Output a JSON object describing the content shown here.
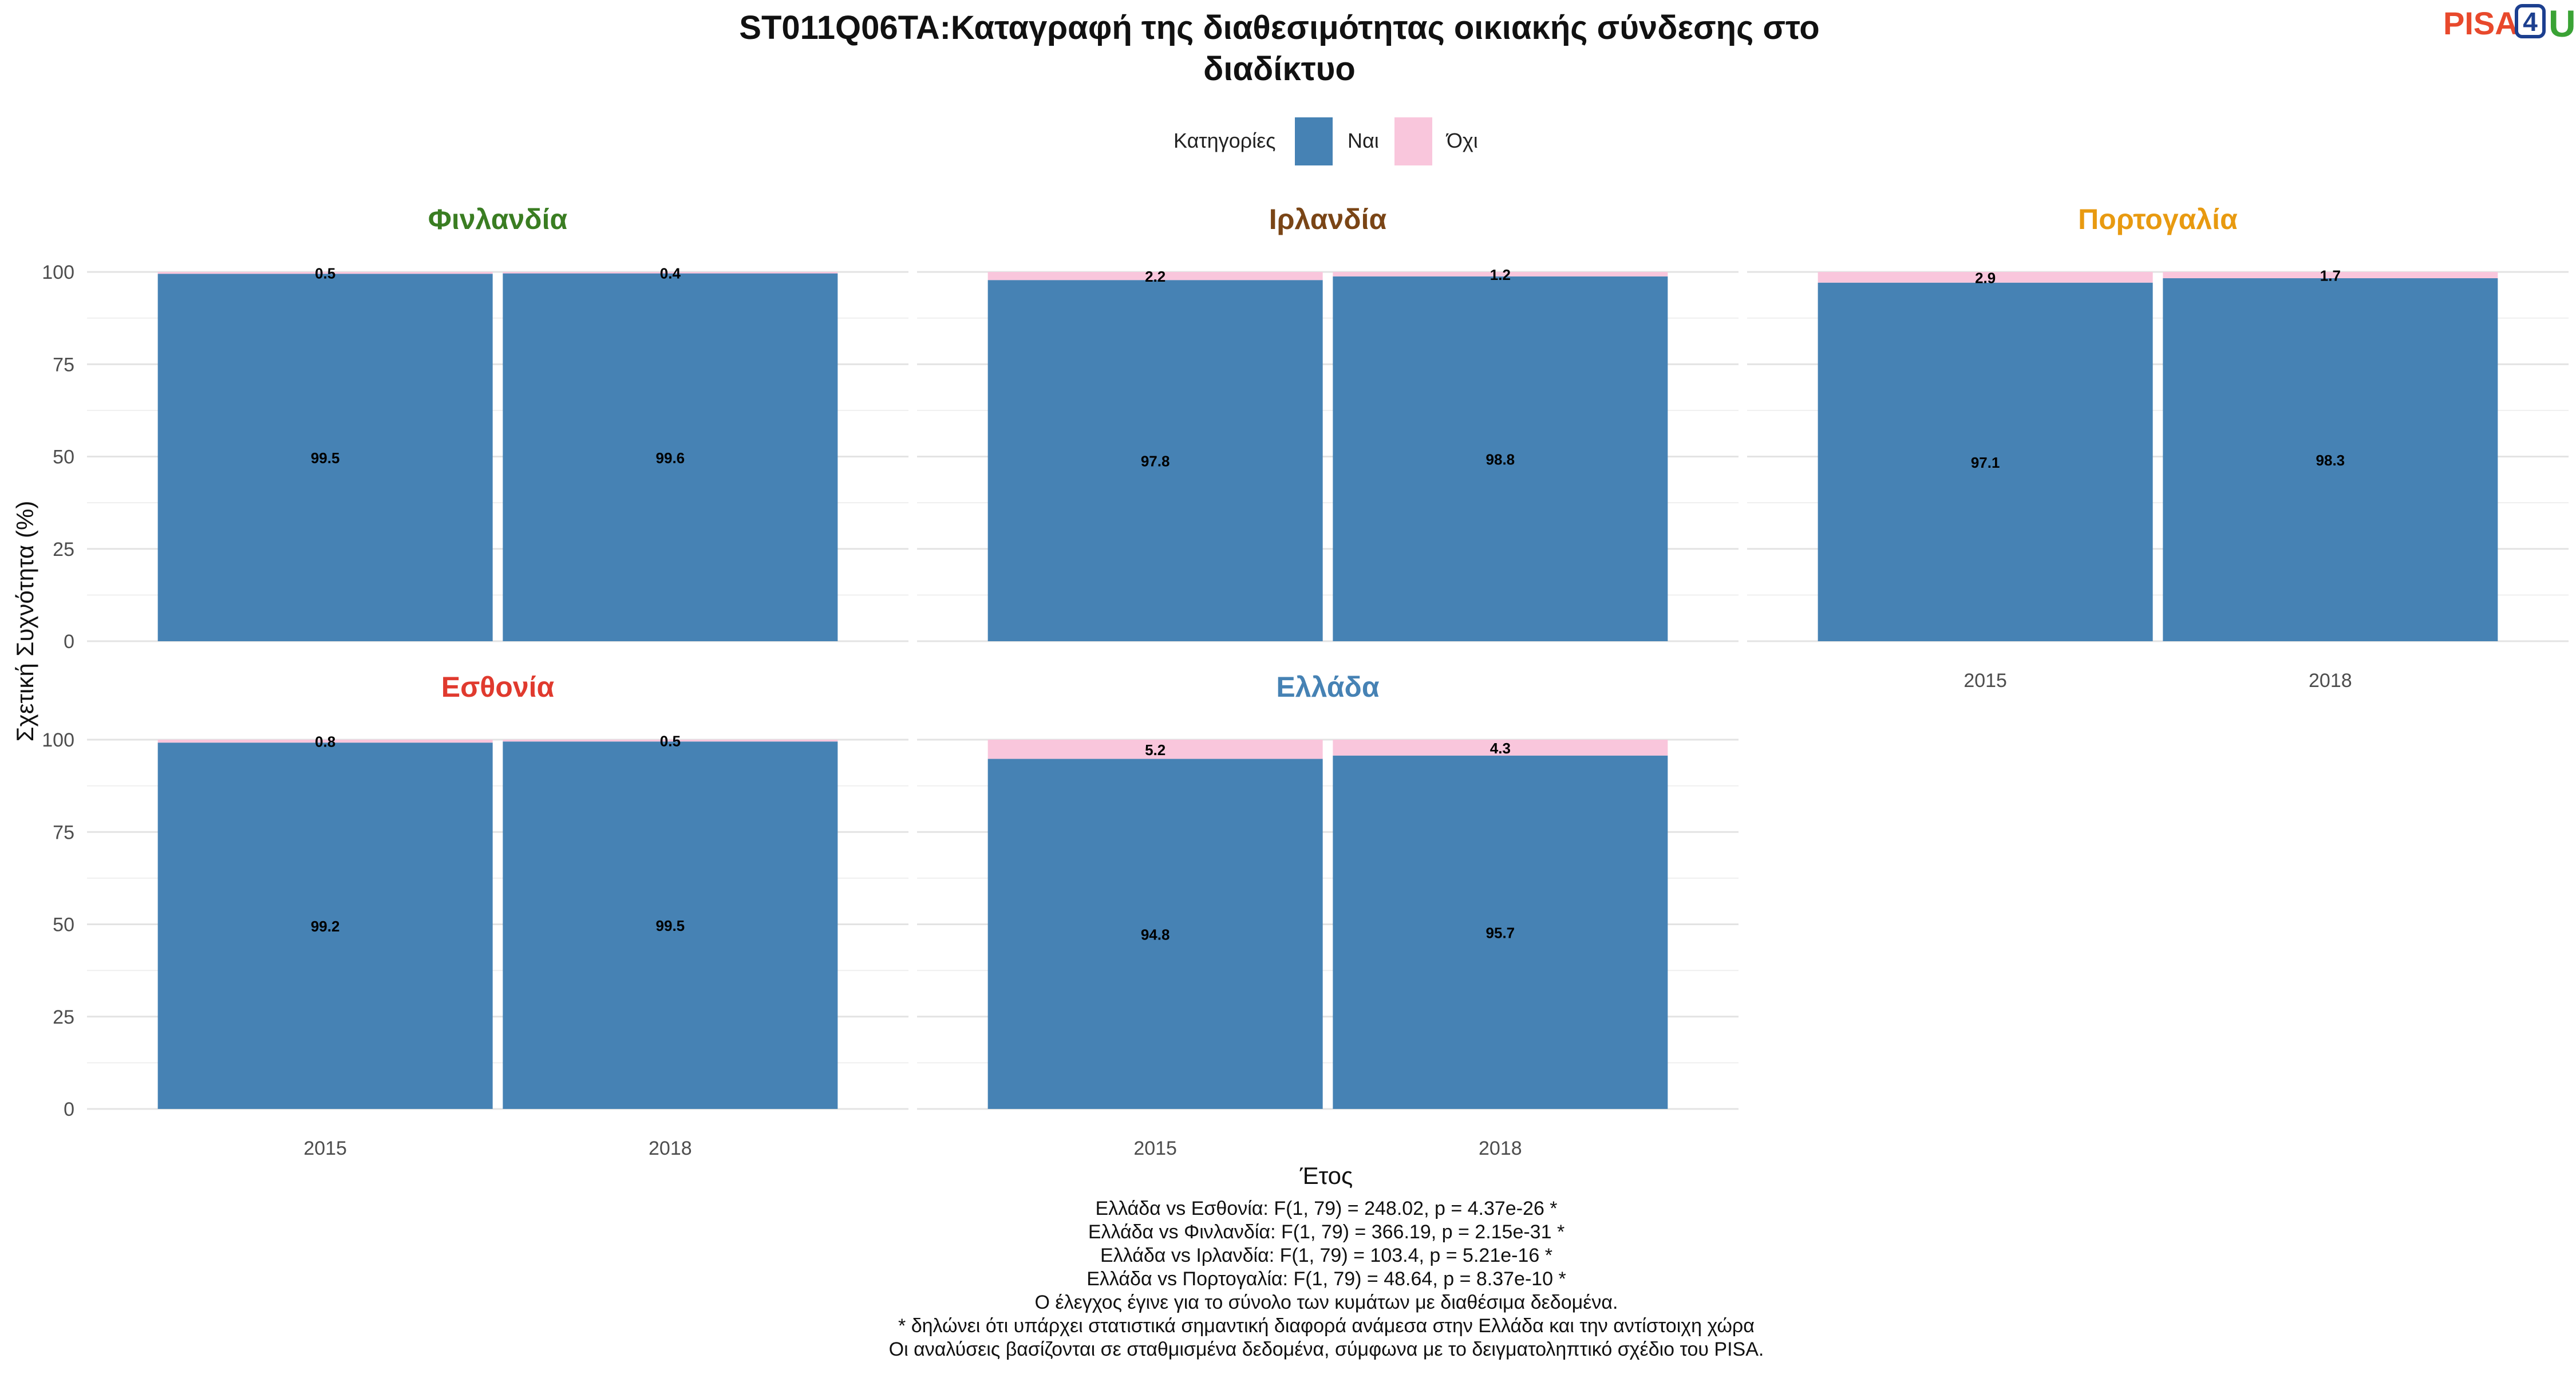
{
  "chart_data": {
    "type": "bar",
    "stacked": true,
    "title": "ST011Q06TA:Καταγραφή της διαθεσιμότητας οικιακής σύνδεσης στο διαδίκτυο",
    "title_lines": [
      "ST011Q06TA:Καταγραφή της διαθεσιμότητας οικιακής σύνδεσης στο",
      "διαδίκτυο"
    ],
    "xlabel": "Έτος",
    "ylabel": "Σχετική Συχνότητα (%)",
    "ylim": [
      0,
      100
    ],
    "yticks": [
      0,
      25,
      50,
      75,
      100
    ],
    "grid": true,
    "legend": {
      "title": "Κατηγορίες",
      "placement": "top",
      "entries": [
        {
          "name": "Ναι",
          "color": "#4682b4"
        },
        {
          "name": "Όχι",
          "color": "#f9c6dc"
        }
      ]
    },
    "categories": [
      "2015",
      "2018"
    ],
    "facets": [
      {
        "name": "Φινλανδία",
        "color": "#3a7d22",
        "series": [
          {
            "name": "Ναι",
            "values": [
              99.5,
              99.6
            ]
          },
          {
            "name": "Όχι",
            "values": [
              0.5,
              0.4
            ]
          }
        ]
      },
      {
        "name": "Ιρλανδία",
        "color": "#7a4516",
        "series": [
          {
            "name": "Ναι",
            "values": [
              97.8,
              98.8
            ]
          },
          {
            "name": "Όχι",
            "values": [
              2.2,
              1.2
            ]
          }
        ]
      },
      {
        "name": "Πορτογαλία",
        "color": "#e89a10",
        "series": [
          {
            "name": "Ναι",
            "values": [
              97.1,
              98.3
            ]
          },
          {
            "name": "Όχι",
            "values": [
              2.9,
              1.7
            ]
          }
        ]
      },
      {
        "name": "Εσθονία",
        "color": "#e03a2e",
        "series": [
          {
            "name": "Ναι",
            "values": [
              99.2,
              99.5
            ]
          },
          {
            "name": "Όχι",
            "values": [
              0.8,
              0.5
            ]
          }
        ]
      },
      {
        "name": "Ελλάδα",
        "color": "#4682b4",
        "series": [
          {
            "name": "Ναι",
            "values": [
              94.8,
              95.7
            ]
          },
          {
            "name": "Όχι",
            "values": [
              5.2,
              4.3
            ]
          }
        ]
      }
    ],
    "annotations": [
      "Ελλάδα vs Εσθονία: F(1, 79) = 248.02, p = 4.37e-26 *",
      "Ελλάδα vs Φινλανδία: F(1, 79) = 366.19, p = 2.15e-31 *",
      "Ελλάδα vs Ιρλανδία: F(1, 79) = 103.4, p = 5.21e-16 *",
      "Ελλάδα vs Πορτογαλία: F(1, 79) = 48.64, p = 8.37e-10 *",
      "Ο έλεγχος έγινε για το σύνολο των κυμάτων με διαθέσιμα δεδομένα.",
      "* δηλώνει ότι υπάρχει στατιστικά σημαντική διαφορά ανάμεσα στην Ελλάδα και την αντίστοιχη χώρα",
      "Οι αναλύσεις βασίζονται σε σταθμισμένα δεδομένα, σύμφωνα με το δειγματοληπτικό σχέδιο του PISA."
    ]
  },
  "logo": {
    "text_left": "PISA",
    "text_box": "4",
    "text_right": "U"
  }
}
